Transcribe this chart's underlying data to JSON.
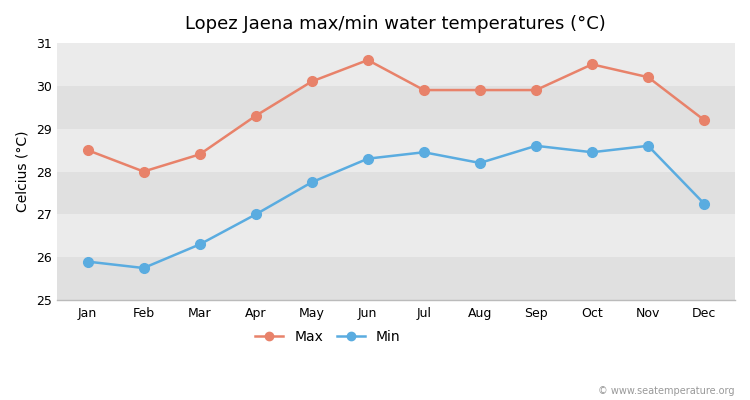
{
  "title": "Lopez Jaena max/min water temperatures (°C)",
  "ylabel": "Celcius (°C)",
  "months": [
    "Jan",
    "Feb",
    "Mar",
    "Apr",
    "May",
    "Jun",
    "Jul",
    "Aug",
    "Sep",
    "Oct",
    "Nov",
    "Dec"
  ],
  "max_temps": [
    28.5,
    28.0,
    28.4,
    29.3,
    30.1,
    30.6,
    29.9,
    29.9,
    29.9,
    30.5,
    30.2,
    29.2
  ],
  "min_temps": [
    25.9,
    25.75,
    26.3,
    27.0,
    27.75,
    28.3,
    28.45,
    28.2,
    28.6,
    28.45,
    28.6,
    27.25
  ],
  "max_color": "#e8826a",
  "min_color": "#5aace0",
  "bg_color": "#ffffff",
  "band_color_light": "#ebebeb",
  "band_color_dark": "#e0e0e0",
  "ylim": [
    25,
    31
  ],
  "yticks": [
    25,
    26,
    27,
    28,
    29,
    30,
    31
  ],
  "marker_size": 7,
  "line_width": 1.8,
  "title_fontsize": 13,
  "label_fontsize": 10,
  "tick_fontsize": 9,
  "watermark": "© www.seatemperature.org"
}
